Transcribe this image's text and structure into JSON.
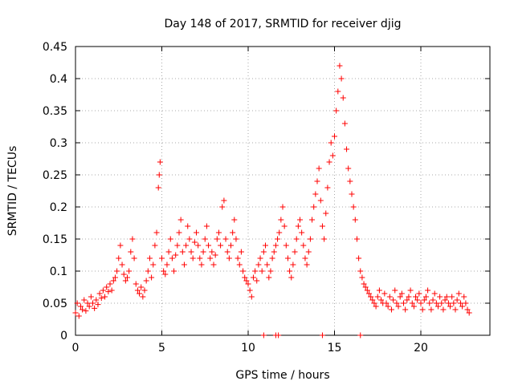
{
  "chart_data": {
    "type": "scatter",
    "title": "Day 148 of 2017, SRMTID for receiver djig",
    "xlabel": "GPS time / hours",
    "ylabel": "SRMTID / TECUs",
    "xlim": [
      0,
      24
    ],
    "ylim": [
      0,
      0.45
    ],
    "x_ticks": [
      0,
      5,
      10,
      15,
      20
    ],
    "x_tick_labels": [
      "0",
      "5",
      "10",
      "15",
      "20"
    ],
    "y_ticks": [
      0,
      0.05,
      0.1,
      0.15,
      0.2,
      0.25,
      0.3,
      0.35,
      0.4,
      0.45
    ],
    "y_tick_labels": [
      "0",
      "0.05",
      "0.1",
      "0.15",
      "0.2",
      "0.25",
      "0.3",
      "0.35",
      "0.4",
      "0.45"
    ],
    "grid": true,
    "marker": "+",
    "marker_color": "#ff0000",
    "series": [
      {
        "name": "SRMTID",
        "points": [
          [
            0.0,
            0.035
          ],
          [
            0.1,
            0.05
          ],
          [
            0.2,
            0.03
          ],
          [
            0.3,
            0.045
          ],
          [
            0.4,
            0.04
          ],
          [
            0.5,
            0.055
          ],
          [
            0.6,
            0.038
          ],
          [
            0.7,
            0.05
          ],
          [
            0.8,
            0.045
          ],
          [
            0.9,
            0.06
          ],
          [
            1.0,
            0.05
          ],
          [
            1.1,
            0.042
          ],
          [
            1.2,
            0.055
          ],
          [
            1.3,
            0.048
          ],
          [
            1.4,
            0.065
          ],
          [
            1.5,
            0.058
          ],
          [
            1.6,
            0.07
          ],
          [
            1.7,
            0.06
          ],
          [
            1.8,
            0.075
          ],
          [
            1.9,
            0.068
          ],
          [
            2.0,
            0.08
          ],
          [
            2.1,
            0.07
          ],
          [
            2.2,
            0.085
          ],
          [
            2.3,
            0.09
          ],
          [
            2.4,
            0.1
          ],
          [
            2.5,
            0.12
          ],
          [
            2.6,
            0.14
          ],
          [
            2.7,
            0.11
          ],
          [
            2.8,
            0.095
          ],
          [
            2.9,
            0.085
          ],
          [
            3.0,
            0.09
          ],
          [
            3.1,
            0.1
          ],
          [
            3.2,
            0.13
          ],
          [
            3.3,
            0.15
          ],
          [
            3.4,
            0.12
          ],
          [
            3.5,
            0.08
          ],
          [
            3.6,
            0.07
          ],
          [
            3.7,
            0.065
          ],
          [
            3.8,
            0.075
          ],
          [
            3.9,
            0.06
          ],
          [
            4.0,
            0.07
          ],
          [
            4.1,
            0.085
          ],
          [
            4.2,
            0.1
          ],
          [
            4.3,
            0.12
          ],
          [
            4.4,
            0.09
          ],
          [
            4.5,
            0.11
          ],
          [
            4.6,
            0.14
          ],
          [
            4.7,
            0.16
          ],
          [
            4.8,
            0.23
          ],
          [
            4.85,
            0.25
          ],
          [
            4.9,
            0.27
          ],
          [
            5.0,
            0.12
          ],
          [
            5.1,
            0.1
          ],
          [
            5.2,
            0.095
          ],
          [
            5.3,
            0.11
          ],
          [
            5.4,
            0.13
          ],
          [
            5.5,
            0.15
          ],
          [
            5.6,
            0.12
          ],
          [
            5.7,
            0.1
          ],
          [
            5.8,
            0.125
          ],
          [
            5.9,
            0.14
          ],
          [
            6.0,
            0.16
          ],
          [
            6.1,
            0.18
          ],
          [
            6.2,
            0.13
          ],
          [
            6.3,
            0.11
          ],
          [
            6.4,
            0.14
          ],
          [
            6.5,
            0.17
          ],
          [
            6.6,
            0.15
          ],
          [
            6.7,
            0.13
          ],
          [
            6.8,
            0.12
          ],
          [
            6.9,
            0.145
          ],
          [
            7.0,
            0.16
          ],
          [
            7.1,
            0.14
          ],
          [
            7.2,
            0.12
          ],
          [
            7.3,
            0.11
          ],
          [
            7.4,
            0.13
          ],
          [
            7.5,
            0.15
          ],
          [
            7.6,
            0.17
          ],
          [
            7.7,
            0.14
          ],
          [
            7.8,
            0.12
          ],
          [
            7.9,
            0.13
          ],
          [
            8.0,
            0.11
          ],
          [
            8.1,
            0.125
          ],
          [
            8.2,
            0.15
          ],
          [
            8.3,
            0.16
          ],
          [
            8.4,
            0.14
          ],
          [
            8.5,
            0.2
          ],
          [
            8.6,
            0.21
          ],
          [
            8.7,
            0.15
          ],
          [
            8.8,
            0.13
          ],
          [
            8.9,
            0.12
          ],
          [
            9.0,
            0.14
          ],
          [
            9.1,
            0.16
          ],
          [
            9.2,
            0.18
          ],
          [
            9.3,
            0.15
          ],
          [
            9.4,
            0.12
          ],
          [
            9.5,
            0.11
          ],
          [
            9.6,
            0.13
          ],
          [
            9.7,
            0.1
          ],
          [
            9.8,
            0.09
          ],
          [
            9.9,
            0.085
          ],
          [
            10.0,
            0.08
          ],
          [
            10.1,
            0.07
          ],
          [
            10.2,
            0.06
          ],
          [
            10.3,
            0.09
          ],
          [
            10.4,
            0.1
          ],
          [
            10.5,
            0.085
          ],
          [
            10.6,
            0.11
          ],
          [
            10.7,
            0.12
          ],
          [
            10.8,
            0.1
          ],
          [
            10.9,
            0.13
          ],
          [
            11.0,
            0.14
          ],
          [
            11.1,
            0.11
          ],
          [
            11.2,
            0.09
          ],
          [
            11.3,
            0.1
          ],
          [
            11.4,
            0.12
          ],
          [
            11.5,
            0.13
          ],
          [
            11.6,
            0.14
          ],
          [
            11.7,
            0.15
          ],
          [
            11.8,
            0.16
          ],
          [
            11.9,
            0.18
          ],
          [
            12.0,
            0.2
          ],
          [
            12.1,
            0.17
          ],
          [
            12.2,
            0.14
          ],
          [
            12.3,
            0.12
          ],
          [
            12.4,
            0.1
          ],
          [
            12.5,
            0.09
          ],
          [
            12.6,
            0.11
          ],
          [
            12.7,
            0.13
          ],
          [
            12.8,
            0.15
          ],
          [
            12.9,
            0.17
          ],
          [
            13.0,
            0.18
          ],
          [
            13.1,
            0.16
          ],
          [
            13.2,
            0.14
          ],
          [
            13.3,
            0.12
          ],
          [
            13.4,
            0.11
          ],
          [
            13.5,
            0.13
          ],
          [
            13.6,
            0.15
          ],
          [
            13.7,
            0.18
          ],
          [
            13.8,
            0.2
          ],
          [
            13.9,
            0.22
          ],
          [
            14.0,
            0.24
          ],
          [
            14.1,
            0.26
          ],
          [
            14.2,
            0.21
          ],
          [
            14.3,
            0.17
          ],
          [
            14.4,
            0.15
          ],
          [
            14.5,
            0.19
          ],
          [
            14.6,
            0.23
          ],
          [
            14.7,
            0.27
          ],
          [
            14.8,
            0.3
          ],
          [
            14.9,
            0.28
          ],
          [
            15.0,
            0.31
          ],
          [
            15.1,
            0.35
          ],
          [
            15.2,
            0.38
          ],
          [
            15.3,
            0.42
          ],
          [
            15.4,
            0.4
          ],
          [
            15.5,
            0.37
          ],
          [
            15.6,
            0.33
          ],
          [
            15.7,
            0.29
          ],
          [
            15.8,
            0.26
          ],
          [
            15.9,
            0.24
          ],
          [
            16.0,
            0.22
          ],
          [
            16.1,
            0.2
          ],
          [
            16.2,
            0.18
          ],
          [
            16.3,
            0.15
          ],
          [
            16.4,
            0.12
          ],
          [
            16.5,
            0.1
          ],
          [
            16.6,
            0.09
          ],
          [
            16.7,
            0.08
          ],
          [
            16.8,
            0.075
          ],
          [
            16.9,
            0.07
          ],
          [
            17.0,
            0.065
          ],
          [
            17.1,
            0.06
          ],
          [
            17.2,
            0.055
          ],
          [
            17.3,
            0.05
          ],
          [
            17.4,
            0.045
          ],
          [
            17.5,
            0.06
          ],
          [
            17.6,
            0.07
          ],
          [
            17.7,
            0.055
          ],
          [
            17.8,
            0.05
          ],
          [
            17.9,
            0.065
          ],
          [
            18.0,
            0.05
          ],
          [
            18.1,
            0.045
          ],
          [
            18.2,
            0.06
          ],
          [
            18.3,
            0.04
          ],
          [
            18.4,
            0.055
          ],
          [
            18.5,
            0.07
          ],
          [
            18.6,
            0.05
          ],
          [
            18.7,
            0.045
          ],
          [
            18.8,
            0.06
          ],
          [
            18.9,
            0.065
          ],
          [
            19.0,
            0.05
          ],
          [
            19.1,
            0.04
          ],
          [
            19.2,
            0.055
          ],
          [
            19.3,
            0.06
          ],
          [
            19.4,
            0.07
          ],
          [
            19.5,
            0.05
          ],
          [
            19.6,
            0.045
          ],
          [
            19.7,
            0.06
          ],
          [
            19.8,
            0.055
          ],
          [
            19.9,
            0.065
          ],
          [
            20.0,
            0.05
          ],
          [
            20.1,
            0.04
          ],
          [
            20.2,
            0.055
          ],
          [
            20.3,
            0.06
          ],
          [
            20.4,
            0.07
          ],
          [
            20.5,
            0.05
          ],
          [
            20.6,
            0.04
          ],
          [
            20.7,
            0.055
          ],
          [
            20.8,
            0.065
          ],
          [
            20.9,
            0.05
          ],
          [
            21.0,
            0.045
          ],
          [
            21.1,
            0.06
          ],
          [
            21.2,
            0.05
          ],
          [
            21.3,
            0.04
          ],
          [
            21.4,
            0.055
          ],
          [
            21.5,
            0.06
          ],
          [
            21.6,
            0.05
          ],
          [
            21.7,
            0.045
          ],
          [
            21.8,
            0.06
          ],
          [
            21.9,
            0.05
          ],
          [
            22.0,
            0.04
          ],
          [
            22.1,
            0.055
          ],
          [
            22.2,
            0.065
          ],
          [
            22.3,
            0.05
          ],
          [
            22.4,
            0.045
          ],
          [
            22.5,
            0.06
          ],
          [
            22.6,
            0.05
          ],
          [
            22.7,
            0.04
          ],
          [
            22.8,
            0.035
          ]
        ]
      },
      {
        "name": "zero values",
        "points": [
          [
            10.9,
            0.0
          ],
          [
            11.6,
            0.0
          ],
          [
            11.75,
            0.0
          ],
          [
            14.3,
            0.0
          ],
          [
            16.5,
            0.0
          ]
        ]
      }
    ]
  }
}
